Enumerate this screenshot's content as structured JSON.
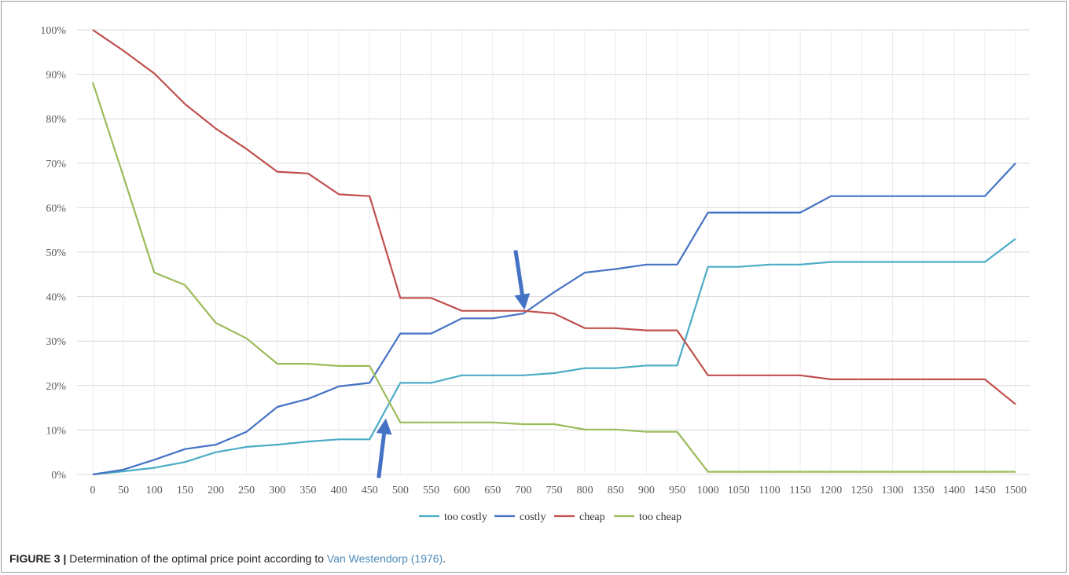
{
  "chart_data": {
    "type": "line",
    "title": "",
    "xlabel": "",
    "ylabel": "",
    "x": [
      0,
      50,
      100,
      150,
      200,
      250,
      300,
      350,
      400,
      450,
      500,
      550,
      600,
      650,
      700,
      750,
      800,
      850,
      900,
      950,
      1000,
      1050,
      1100,
      1150,
      1200,
      1250,
      1300,
      1350,
      1400,
      1450,
      1500
    ],
    "ylim": [
      0,
      100
    ],
    "y_ticks": [
      0,
      10,
      20,
      30,
      40,
      50,
      60,
      70,
      80,
      90,
      100
    ],
    "y_tick_labels": [
      "0%",
      "10%",
      "20%",
      "30%",
      "40%",
      "50%",
      "60%",
      "70%",
      "80%",
      "90%",
      "100%"
    ],
    "grid": "both",
    "legend_position": "bottom",
    "series": [
      {
        "name": "too costly",
        "color": "#4bacc6",
        "values": [
          0,
          0.7,
          1.5,
          2.8,
          5.0,
          6.2,
          6.7,
          7.4,
          7.9,
          7.9,
          20.6,
          20.6,
          22.3,
          22.3,
          22.3,
          22.8,
          23.9,
          23.9,
          24.5,
          24.5,
          46.7,
          46.7,
          47.2,
          47.2,
          47.8,
          47.8,
          47.8,
          47.8,
          47.8,
          47.8,
          53.0
        ]
      },
      {
        "name": "costly",
        "color": "#4472c4",
        "values": [
          0,
          1.1,
          3.3,
          5.7,
          6.7,
          9.6,
          15.2,
          17.0,
          19.8,
          20.6,
          31.7,
          31.7,
          35.1,
          35.1,
          36.2,
          41.0,
          45.4,
          46.2,
          47.2,
          47.2,
          58.9,
          58.9,
          58.9,
          58.9,
          62.6,
          62.6,
          62.6,
          62.6,
          62.6,
          62.6,
          70.0
        ]
      },
      {
        "name": "cheap",
        "color": "#c0504d",
        "values": [
          100,
          95.3,
          90.2,
          83.3,
          77.8,
          73.2,
          68.1,
          67.7,
          63.0,
          62.6,
          39.7,
          39.7,
          36.8,
          36.8,
          36.8,
          36.2,
          32.9,
          32.9,
          32.4,
          32.4,
          22.3,
          22.3,
          22.3,
          22.3,
          21.4,
          21.4,
          21.4,
          21.4,
          21.4,
          21.4,
          15.8
        ]
      },
      {
        "name": "too cheap",
        "color": "#9bbb59",
        "values": [
          88.2,
          67.0,
          45.4,
          42.6,
          34.1,
          30.6,
          24.9,
          24.9,
          24.4,
          24.4,
          11.7,
          11.7,
          11.7,
          11.7,
          11.3,
          11.3,
          10.1,
          10.1,
          9.6,
          9.6,
          0.6,
          0.6,
          0.6,
          0.6,
          0.6,
          0.6,
          0.6,
          0.6,
          0.6,
          0.6,
          0.6
        ]
      }
    ],
    "annotations": [
      {
        "type": "arrow",
        "direction": "down",
        "points_to": {
          "x": 700,
          "y": 37
        },
        "color": "#4472c4"
      },
      {
        "type": "arrow",
        "direction": "up",
        "points_to": {
          "x": 475,
          "y": 13
        },
        "color": "#4472c4"
      }
    ]
  },
  "caption": {
    "label": "FIGURE 3 |",
    "text": " Determination of the optimal price point according to ",
    "reference": "Van Westendorp (1976)",
    "end": "."
  }
}
